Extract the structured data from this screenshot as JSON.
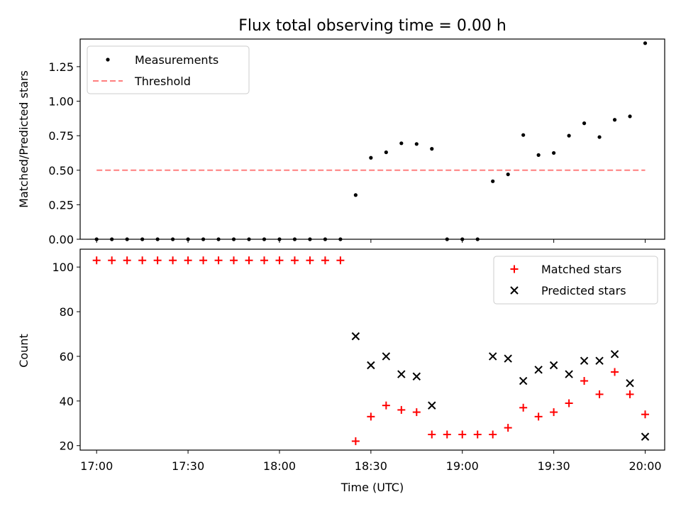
{
  "title": "Flux total observing time = 0.00 h",
  "xlabel": "Time (UTC)",
  "x_ticks": [
    "17:00",
    "17:30",
    "18:00",
    "18:30",
    "19:00",
    "19:30",
    "20:00"
  ],
  "colors": {
    "threshold": "#ff7f7f",
    "matched": "#ff0000",
    "predicted": "#000000",
    "measurements": "#000000"
  },
  "chart_data": [
    {
      "type": "scatter",
      "ylabel": "Matched/Predicted stars",
      "ylim": [
        0,
        1.45
      ],
      "y_ticks": [
        "0.00",
        "0.25",
        "0.50",
        "0.75",
        "1.00",
        "1.25"
      ],
      "legend": {
        "placement": "top-left",
        "entries": [
          "Measurements",
          "Threshold"
        ]
      },
      "x_minutes_from": "17:00",
      "series": [
        {
          "name": "Measurements",
          "x": [
            0,
            5,
            10,
            15,
            20,
            25,
            30,
            35,
            40,
            45,
            50,
            55,
            60,
            65,
            70,
            75,
            80,
            85,
            90,
            95,
            100,
            105,
            110,
            115,
            120,
            125,
            130,
            135,
            140,
            145,
            150,
            155,
            160,
            165,
            170,
            175,
            180
          ],
          "values": [
            0,
            0,
            0,
            0,
            0,
            0,
            0,
            0,
            0,
            0,
            0,
            0,
            0,
            0,
            0,
            0,
            0,
            0.32,
            0.59,
            0.63,
            0.695,
            0.69,
            0.655,
            0,
            0,
            0,
            0.42,
            0.47,
            0.755,
            0.61,
            0.625,
            0.75,
            0.84,
            0.74,
            0.865,
            0.89,
            1.42
          ]
        },
        {
          "name": "Threshold",
          "x": [
            0,
            180
          ],
          "values": [
            0.5,
            0.5
          ]
        }
      ]
    },
    {
      "type": "scatter",
      "ylabel": "Count",
      "ylim": [
        18,
        108
      ],
      "y_ticks": [
        "20",
        "40",
        "60",
        "80",
        "100"
      ],
      "legend": {
        "placement": "top-right",
        "entries": [
          "Matched stars",
          "Predicted stars"
        ]
      },
      "series": [
        {
          "name": "Matched stars",
          "x": [
            0,
            5,
            10,
            15,
            20,
            25,
            30,
            35,
            40,
            45,
            50,
            55,
            60,
            65,
            70,
            75,
            80,
            85,
            90,
            95,
            100,
            105,
            110,
            115,
            120,
            125,
            130,
            135,
            140,
            145,
            150,
            155,
            160,
            165,
            170,
            175,
            180
          ],
          "values": [
            103,
            103,
            103,
            103,
            103,
            103,
            103,
            103,
            103,
            103,
            103,
            103,
            103,
            103,
            103,
            103,
            103,
            22,
            33,
            38,
            36,
            35,
            25,
            25,
            25,
            25,
            25,
            28,
            37,
            33,
            35,
            39,
            49,
            43,
            53,
            43,
            34
          ]
        },
        {
          "name": "Predicted stars",
          "x": [
            85,
            90,
            95,
            100,
            105,
            110,
            130,
            135,
            140,
            145,
            150,
            155,
            160,
            165,
            170,
            175,
            180
          ],
          "values": [
            69,
            56,
            60,
            52,
            51,
            38,
            60,
            59,
            49,
            54,
            56,
            52,
            58,
            58,
            61,
            48,
            24
          ]
        }
      ]
    }
  ]
}
